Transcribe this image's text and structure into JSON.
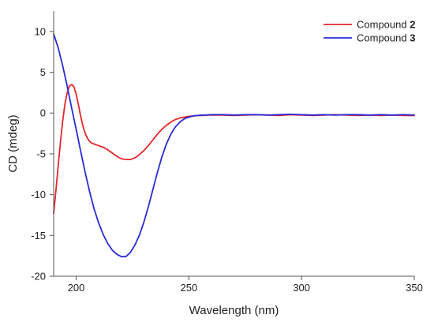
{
  "chart_data": {
    "type": "line",
    "title": "",
    "xlabel": "Wavelength (nm)",
    "ylabel": "CD (mdeg)",
    "xlim": [
      190,
      350
    ],
    "ylim": [
      -20,
      12.5
    ],
    "x_ticks": [
      200,
      250,
      300,
      350
    ],
    "y_ticks": [
      10,
      5,
      0,
      -5,
      -10,
      -15,
      -20
    ],
    "grid": false,
    "legend_position": "top-right",
    "series": [
      {
        "name": "Compound 2",
        "name_prefix": "Compound ",
        "name_number": "2",
        "color": "#e8262b",
        "x": [
          190,
          191,
          192,
          193,
          194,
          195,
          196,
          197,
          198,
          199,
          200,
          201,
          202,
          203,
          204,
          205,
          206,
          207,
          208,
          209,
          210,
          212,
          214,
          216,
          218,
          220,
          222,
          224,
          226,
          228,
          230,
          232,
          234,
          236,
          238,
          240,
          242,
          244,
          246,
          248,
          250,
          252,
          254,
          256,
          258,
          260,
          265,
          270,
          275,
          280,
          285,
          290,
          295,
          300,
          305,
          310,
          315,
          320,
          325,
          330,
          335,
          340,
          345,
          350
        ],
        "y": [
          -12.3,
          -9.5,
          -6.5,
          -3.6,
          -1.0,
          1.1,
          2.5,
          3.3,
          3.5,
          3.2,
          2.3,
          1.0,
          -0.4,
          -1.6,
          -2.5,
          -3.1,
          -3.5,
          -3.7,
          -3.8,
          -3.9,
          -4.0,
          -4.2,
          -4.5,
          -4.9,
          -5.3,
          -5.6,
          -5.7,
          -5.7,
          -5.5,
          -5.1,
          -4.6,
          -4.0,
          -3.3,
          -2.6,
          -2.0,
          -1.5,
          -1.1,
          -0.8,
          -0.6,
          -0.5,
          -0.4,
          -0.35,
          -0.3,
          -0.3,
          -0.25,
          -0.25,
          -0.25,
          -0.3,
          -0.25,
          -0.2,
          -0.25,
          -0.3,
          -0.2,
          -0.25,
          -0.3,
          -0.25,
          -0.2,
          -0.25,
          -0.3,
          -0.25,
          -0.3,
          -0.25,
          -0.3,
          -0.3
        ]
      },
      {
        "name": "Compound 3",
        "name_prefix": "Compound ",
        "name_number": "3",
        "color": "#2b2bd6",
        "x": [
          190,
          192,
          194,
          196,
          198,
          200,
          202,
          204,
          206,
          208,
          210,
          212,
          214,
          216,
          218,
          220,
          222,
          224,
          226,
          228,
          230,
          232,
          234,
          236,
          238,
          240,
          242,
          244,
          246,
          248,
          250,
          252,
          254,
          256,
          258,
          260,
          265,
          270,
          275,
          280,
          285,
          290,
          295,
          300,
          305,
          310,
          315,
          320,
          325,
          330,
          335,
          340,
          345,
          350
        ],
        "y": [
          9.7,
          8.0,
          5.8,
          3.3,
          0.6,
          -2.0,
          -4.7,
          -7.3,
          -9.7,
          -11.8,
          -13.5,
          -14.9,
          -16.0,
          -16.8,
          -17.3,
          -17.6,
          -17.6,
          -17.1,
          -16.2,
          -15.0,
          -13.4,
          -11.5,
          -9.4,
          -7.3,
          -5.4,
          -3.8,
          -2.6,
          -1.7,
          -1.1,
          -0.7,
          -0.5,
          -0.35,
          -0.3,
          -0.25,
          -0.25,
          -0.2,
          -0.2,
          -0.25,
          -0.2,
          -0.2,
          -0.25,
          -0.2,
          -0.15,
          -0.2,
          -0.25,
          -0.2,
          -0.25,
          -0.2,
          -0.2,
          -0.25,
          -0.2,
          -0.25,
          -0.2,
          -0.25
        ]
      }
    ]
  }
}
